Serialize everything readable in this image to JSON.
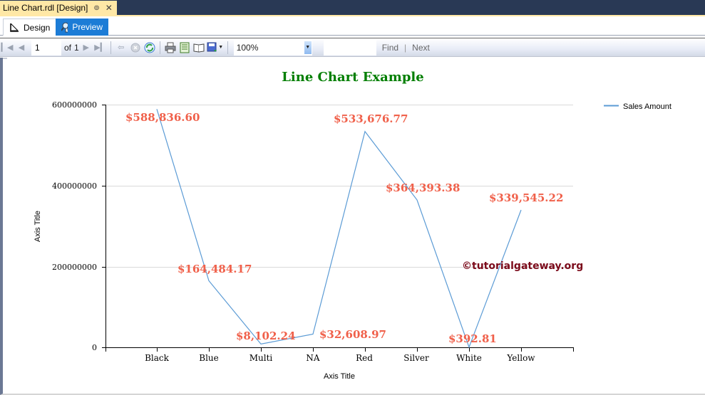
{
  "window": {
    "doc_tab_title": "Line Chart.rdl [Design]",
    "pin_icon": "pin-icon",
    "close_icon": "close-icon"
  },
  "view_tabs": [
    {
      "label": "Design",
      "icon": "design-ruler-icon",
      "active": false
    },
    {
      "label": "Preview",
      "icon": "preview-icon",
      "active": true
    }
  ],
  "toolbar": {
    "page_value": "1",
    "of_label": "of",
    "total_pages": "1",
    "zoom_value": "100%",
    "find_value": "",
    "find_label": "Find",
    "separator": "|",
    "next_label": "Next",
    "icons": [
      "first-page-icon",
      "previous-page-icon",
      "next-page-icon",
      "last-page-icon",
      "back-icon",
      "stop-icon",
      "refresh-icon",
      "print-icon",
      "print-layout-icon",
      "page-setup-icon",
      "export-icon"
    ]
  },
  "report": {
    "watermark": "©tutorialgateway.org",
    "colors": {
      "title": "#007e00",
      "line": "#5b9bd5",
      "data_label": "#f0604a",
      "watermark": "#7b0a1a",
      "gridline": "#d9d9d9"
    }
  },
  "chart_data": {
    "type": "line",
    "title": "Line Chart Example",
    "xlabel": "Axis Title",
    "ylabel": "Axis Title",
    "categories": [
      "Black",
      "Blue",
      "Multi",
      "NA",
      "Red",
      "Silver",
      "White",
      "Yellow"
    ],
    "series": [
      {
        "name": "Sales Amount",
        "values": [
          588836600,
          164484170,
          8102240,
          32608970,
          533676770,
          364393380,
          392810,
          339545220
        ],
        "data_labels": [
          "$588,836.60",
          "$164,484.17",
          "$8,102.24",
          "$32,608.97",
          "$533,676.77",
          "$364,393.38",
          "$392.81",
          "$339,545.22"
        ]
      }
    ],
    "yticks": [
      "0",
      "200000000",
      "400000000",
      "600000000"
    ],
    "ylim": [
      0,
      600000000
    ],
    "grid": true,
    "legend_position": "top-right"
  }
}
